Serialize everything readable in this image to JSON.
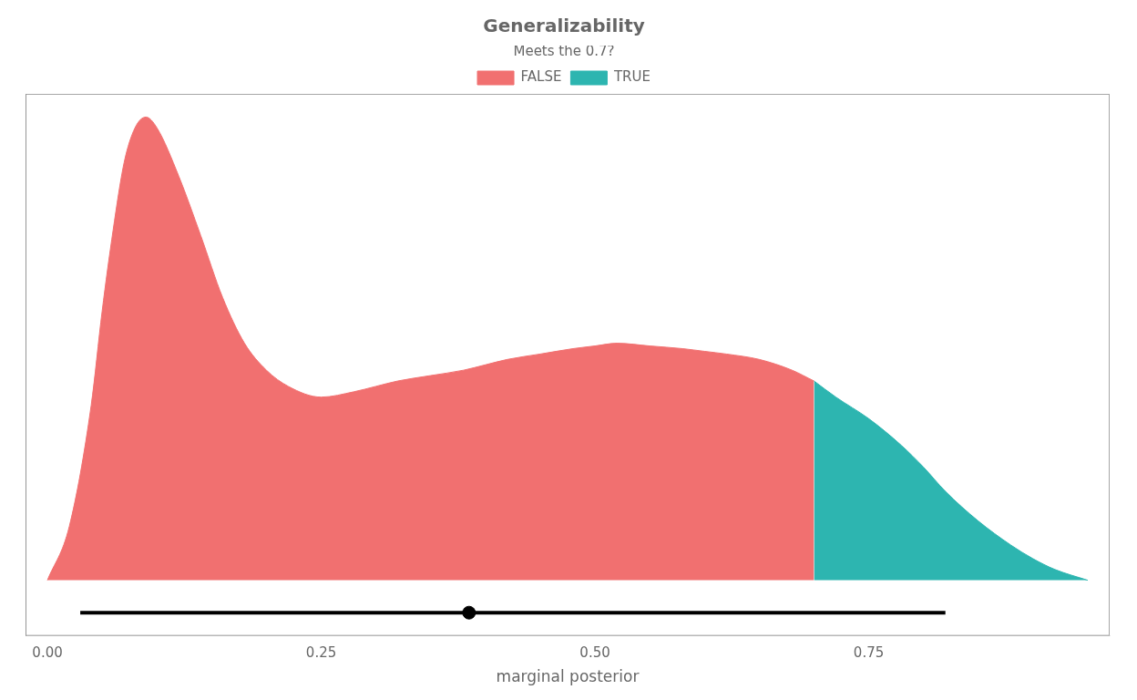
{
  "chart_data": {
    "type": "area",
    "title": "Generalizability",
    "x_label": "marginal posterior",
    "legend_title": "Meets the 0.7?",
    "x": [
      0.0,
      0.02,
      0.04,
      0.05,
      0.06,
      0.07,
      0.08,
      0.09,
      0.1,
      0.12,
      0.14,
      0.16,
      0.18,
      0.2,
      0.22,
      0.25,
      0.28,
      0.3,
      0.32,
      0.35,
      0.38,
      0.4,
      0.42,
      0.45,
      0.48,
      0.5,
      0.52,
      0.55,
      0.58,
      0.6,
      0.62,
      0.65,
      0.68,
      0.7,
      0.72,
      0.75,
      0.78,
      0.8,
      0.82,
      0.85,
      0.88,
      0.9,
      0.92,
      0.95
    ],
    "series": [
      {
        "name": "FALSE",
        "color": "#F17070",
        "values": [
          0.0,
          0.2,
          0.65,
          1.0,
          1.3,
          1.55,
          1.68,
          1.72,
          1.68,
          1.5,
          1.28,
          1.05,
          0.88,
          0.78,
          0.72,
          0.68,
          0.7,
          0.72,
          0.74,
          0.76,
          0.78,
          0.8,
          0.82,
          0.84,
          0.86,
          0.87,
          0.88,
          0.87,
          0.86,
          0.85,
          0.84,
          0.82,
          0.78,
          0.74,
          null,
          null,
          null,
          null,
          null,
          null,
          null,
          null,
          null,
          null
        ]
      },
      {
        "name": "TRUE",
        "color": "#2DB5B0",
        "values": [
          null,
          null,
          null,
          null,
          null,
          null,
          null,
          null,
          null,
          null,
          null,
          null,
          null,
          null,
          null,
          null,
          null,
          null,
          null,
          null,
          null,
          null,
          null,
          null,
          null,
          null,
          null,
          null,
          null,
          null,
          null,
          null,
          null,
          0.74,
          0.68,
          0.6,
          0.5,
          0.42,
          0.33,
          0.22,
          0.13,
          0.08,
          0.04,
          0.0
        ]
      }
    ],
    "interval": {
      "low": 0.03,
      "high": 0.82,
      "median": 0.385,
      "y": -0.1204
    },
    "xlim": [
      -0.02,
      0.97
    ],
    "xticks": [
      {
        "value": 0.0,
        "label": "0.00"
      },
      {
        "value": 0.25,
        "label": "0.25"
      },
      {
        "value": 0.5,
        "label": "0.50"
      },
      {
        "value": 0.75,
        "label": "0.75"
      }
    ],
    "ylim": [
      -0.2064,
      1.806
    ],
    "grid": false,
    "legend": "top",
    "tick_labels": "x"
  }
}
